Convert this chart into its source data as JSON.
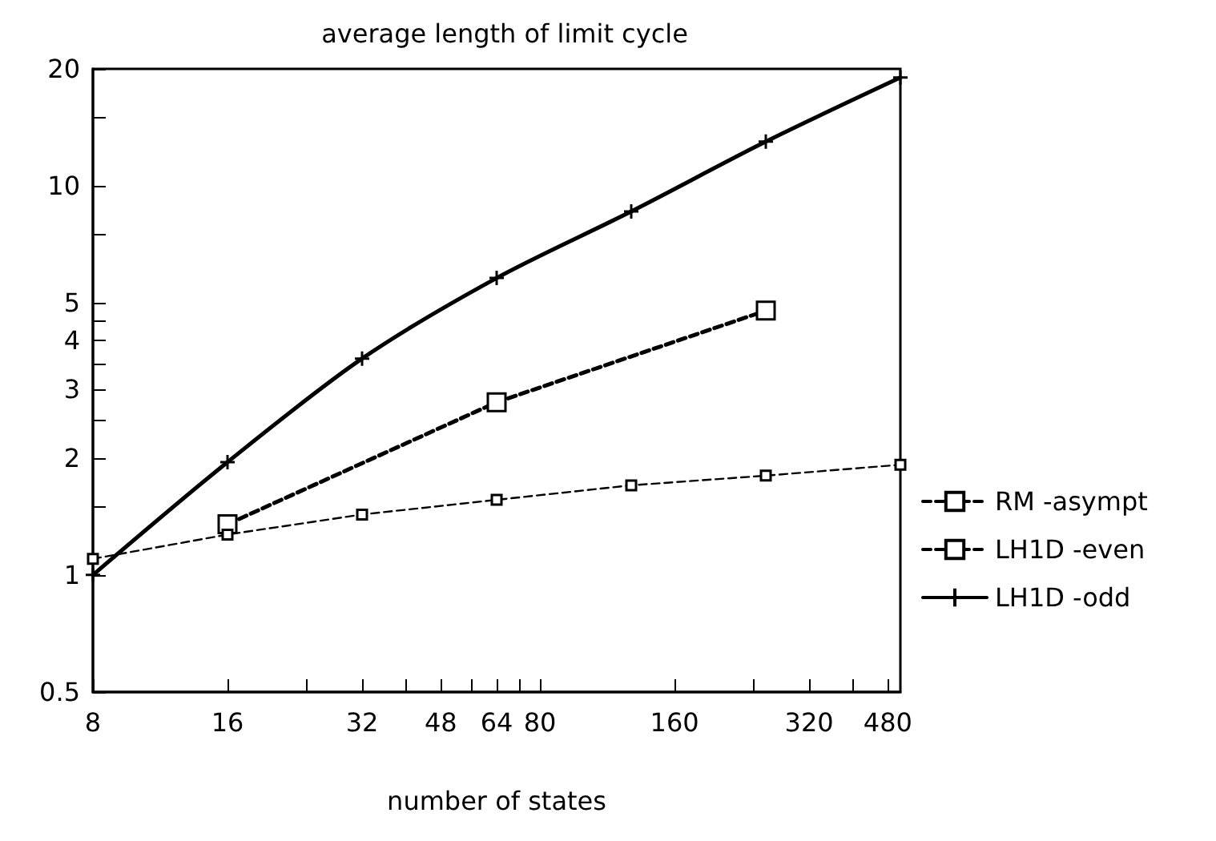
{
  "chart_data": {
    "type": "line",
    "title": "average length of limit cycle",
    "xlabel": "number of states",
    "log": "xy",
    "xlim": [
      8,
      512
    ],
    "ylim": [
      0.5,
      20
    ],
    "xticks": [
      8,
      16,
      {
        "value": 24,
        "label": null
      },
      32,
      {
        "value": 40,
        "label": null
      },
      48,
      {
        "value": 56,
        "label": null
      },
      64,
      {
        "value": 72,
        "label": null
      },
      80,
      160,
      {
        "value": 240,
        "label": null
      },
      320,
      {
        "value": 400,
        "label": null
      },
      480
    ],
    "yticks": [
      0.5,
      1,
      {
        "value": 1.5,
        "label": null
      },
      2,
      {
        "value": 2.5,
        "label": null
      },
      3,
      {
        "value": 3.5,
        "label": null
      },
      4,
      {
        "value": 4.5,
        "label": null
      },
      5,
      {
        "value": 7.5,
        "label": null
      },
      10,
      {
        "value": 15,
        "label": null
      },
      20
    ],
    "grid": false,
    "legend": "right",
    "series": [
      {
        "name": "RM -asympt",
        "color": "#000000",
        "marker": "square",
        "line_style": "dashed",
        "x": [
          8,
          16,
          32,
          64,
          128,
          256,
          512
        ],
        "values": [
          1.1,
          1.27,
          1.43,
          1.56,
          1.7,
          1.8,
          1.92
        ]
      },
      {
        "name": "LH1D -even",
        "color": "#000000",
        "marker": "square",
        "line_style": "dashed",
        "x": [
          16,
          64,
          256
        ],
        "values": [
          1.35,
          2.78,
          4.78
        ]
      },
      {
        "name": "LH1D -odd",
        "color": "#000000",
        "marker": "cross",
        "line_style": "solid",
        "x": [
          8,
          16,
          32,
          64,
          128,
          256,
          512
        ],
        "values": [
          1.0,
          1.95,
          3.6,
          5.8,
          8.6,
          13,
          19
        ]
      }
    ]
  }
}
